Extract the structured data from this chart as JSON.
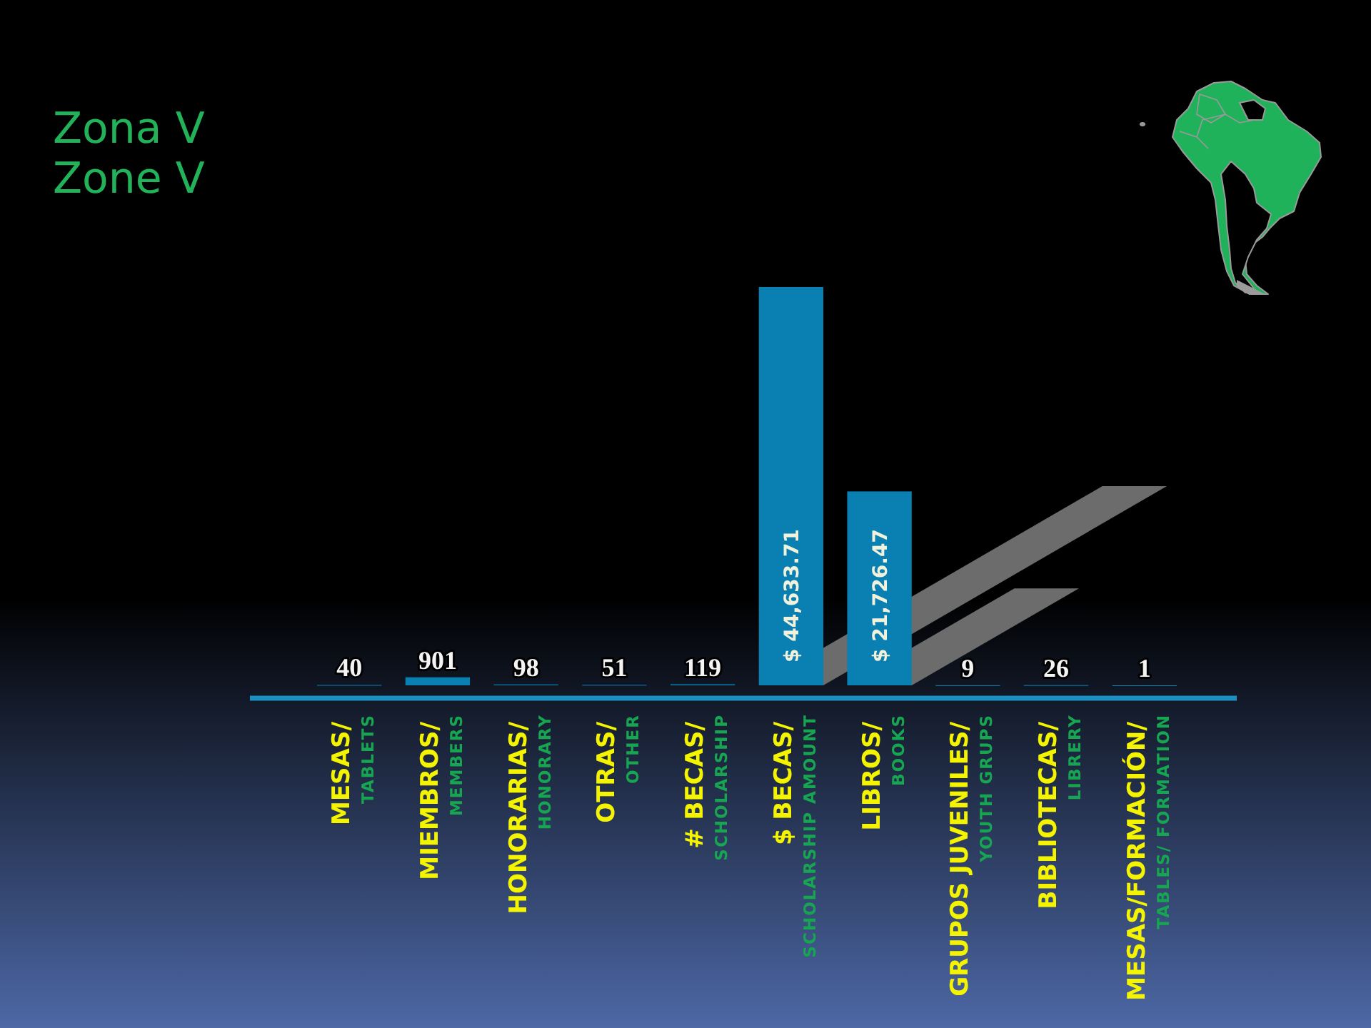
{
  "chart_data": {
    "type": "bar",
    "title": "Zona V",
    "subtitle": "Zone V",
    "categories": [
      "MESAS/\nTABLETS",
      "MIEMBROS/\nMEMBERS",
      "HONORARIAS/\nHONORARY",
      "OTRAS/\nOTHER",
      "# BECAS/\nSCHOLARSHIP",
      "$ BECAS/\nSCHOLARSHIP  AMOUNT",
      "LIBROS/\nBOOKS",
      "GRUPOS JUVENILES/\nYOUTH GRUPS",
      "BIBLIOTECAS/\nLIBRERY",
      "MESAS/FORMACIÓN/\nTABLES/ FORMATION"
    ],
    "values": [
      40,
      901,
      98,
      51,
      119,
      44633.71,
      21726.47,
      9,
      26,
      1
    ],
    "color": "#0a80b2",
    "value_labels": [
      "40",
      "901",
      "98",
      "51",
      "119",
      "$ 44,633.71",
      "$ 21,726.47",
      "9",
      "26",
      "1"
    ]
  }
}
